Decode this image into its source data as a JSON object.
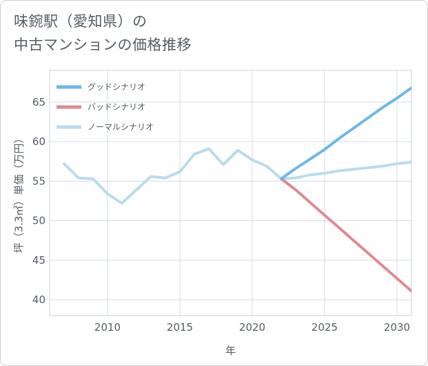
{
  "header": {
    "title_line1": "味鋺駅（愛知県）の",
    "title_line2": "中古マンションの価格推移"
  },
  "chart_data": {
    "type": "line",
    "xlabel": "年",
    "ylabel": "坪（3.3㎡）単価（万円）",
    "xlim": [
      2006,
      2031
    ],
    "ylim": [
      38,
      69
    ],
    "xticks": [
      2010,
      2015,
      2020,
      2025,
      2030
    ],
    "yticks": [
      40,
      45,
      50,
      55,
      60,
      65
    ],
    "grid": true,
    "legend_position": "top-left",
    "series": [
      {
        "name": "グッドシナリオ",
        "color": "#6cb8ea",
        "x": [
          2022,
          2023,
          2024,
          2025,
          2026,
          2027,
          2028,
          2029,
          2030,
          2031
        ],
        "y": [
          55.3,
          56.6,
          57.8,
          59.0,
          60.4,
          61.7,
          63.0,
          64.3,
          65.5,
          66.8
        ]
      },
      {
        "name": "バッドシナリオ",
        "color": "#e08a93",
        "x": [
          2022,
          2023,
          2024,
          2025,
          2026,
          2027,
          2028,
          2029,
          2030,
          2031
        ],
        "y": [
          55.3,
          53.9,
          52.3,
          50.7,
          49.1,
          47.5,
          45.9,
          44.3,
          42.7,
          41.1
        ]
      },
      {
        "name": "ノーマルシナリオ",
        "color": "#b8dcec",
        "x": [
          2007,
          2008,
          2009,
          2010,
          2011,
          2012,
          2013,
          2014,
          2015,
          2016,
          2017,
          2018,
          2019,
          2020,
          2021,
          2022,
          2023,
          2024,
          2025,
          2026,
          2027,
          2028,
          2029,
          2030,
          2031
        ],
        "y": [
          57.2,
          55.4,
          55.3,
          53.4,
          52.2,
          53.9,
          55.6,
          55.4,
          56.2,
          58.4,
          59.1,
          57.1,
          58.9,
          57.7,
          56.9,
          55.3,
          55.4,
          55.8,
          56.0,
          56.3,
          56.5,
          56.7,
          56.9,
          57.2,
          57.4
        ]
      }
    ]
  }
}
